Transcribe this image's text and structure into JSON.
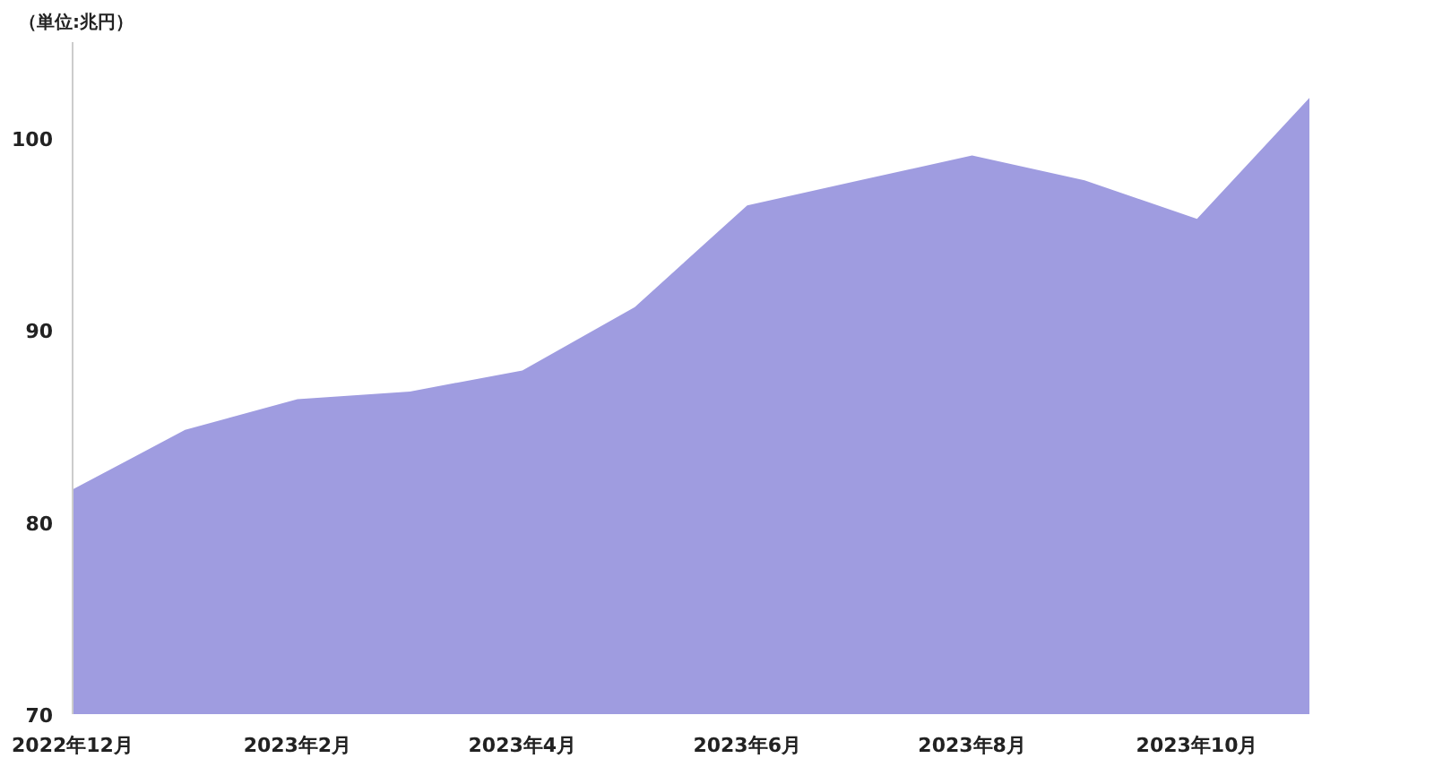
{
  "chart_data": {
    "type": "area",
    "categories": [
      "2022年12月",
      null,
      "2023年2月",
      null,
      "2023年4月",
      null,
      "2023年6月",
      null,
      "2023年8月",
      null,
      "2023年10月",
      null
    ],
    "series": [
      {
        "color": "#9f9ce0",
        "values": [
          81.7,
          84.8,
          86.4,
          86.8,
          87.9,
          91.2,
          96.5,
          97.8,
          99.1,
          97.8,
          95.8,
          102.1
        ]
      }
    ],
    "ylim": [
      70,
      105
    ],
    "yticks": [
      70,
      80,
      90,
      100
    ],
    "grid": false,
    "annotations": [
      "（単位:兆円）"
    ]
  }
}
